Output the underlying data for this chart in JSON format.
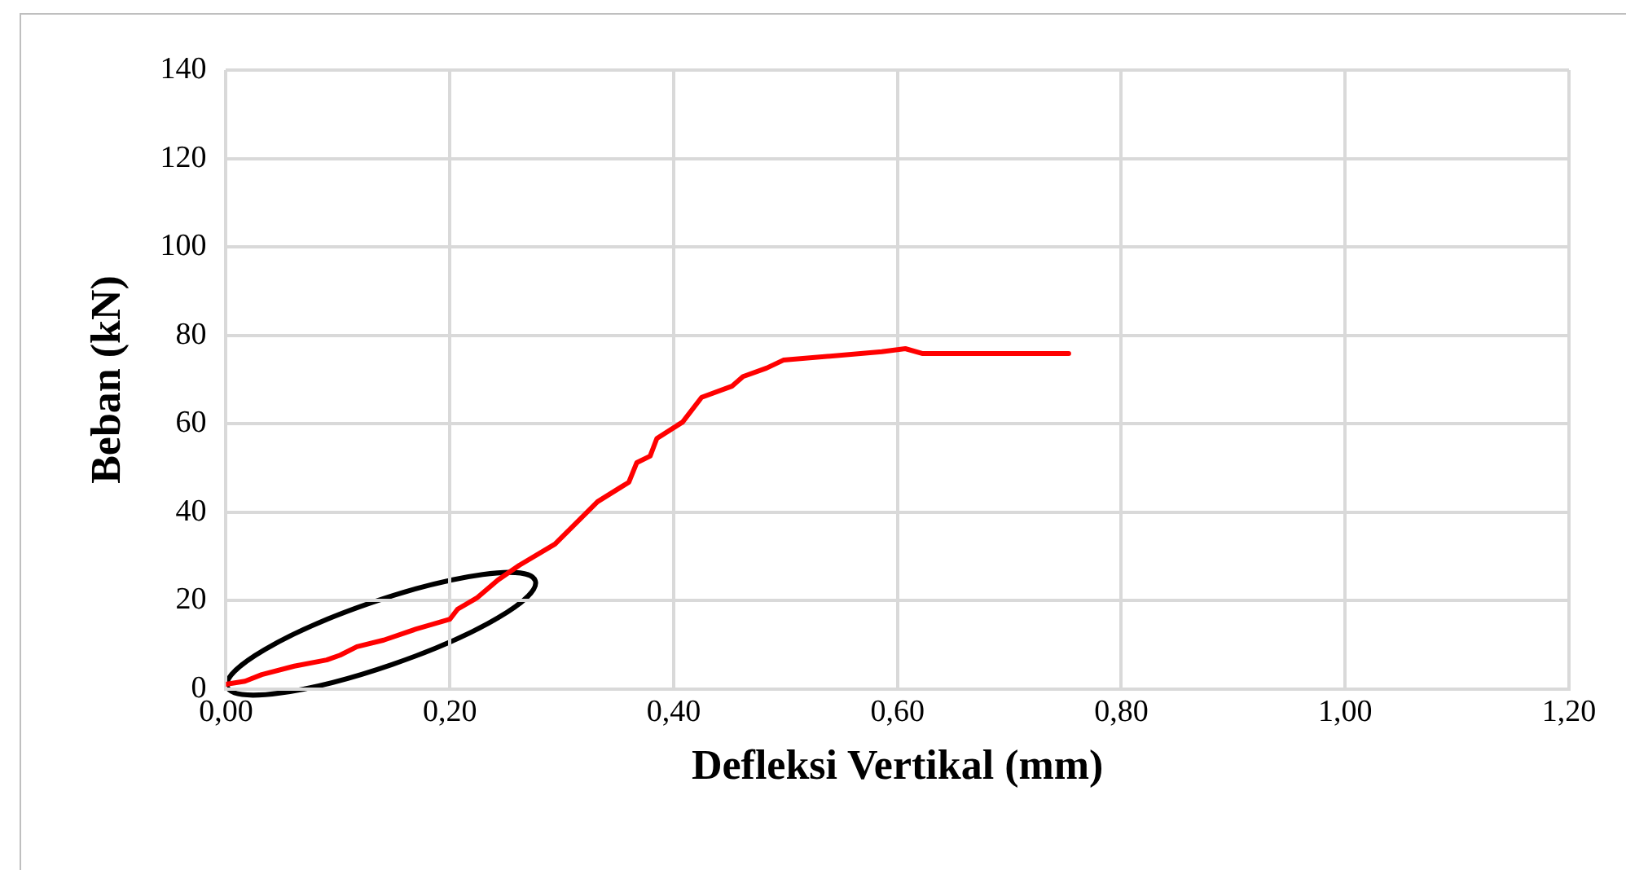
{
  "chart_data": {
    "type": "line",
    "xlabel": "Defleksi Vertikal (mm)",
    "ylabel": "Beban (kN)",
    "x": [
      0,
      0.017,
      0.032,
      0.061,
      0.09,
      0.102,
      0.117,
      0.141,
      0.17,
      0.2,
      0.207,
      0.224,
      0.243,
      0.262,
      0.294,
      0.313,
      0.332,
      0.36,
      0.367,
      0.379,
      0.385,
      0.408,
      0.425,
      0.452,
      0.462,
      0.483,
      0.498,
      0.586,
      0.607,
      0.622,
      0.753
    ],
    "series": [
      {
        "color": "#ff0000",
        "values": [
          1.1,
          1.8,
          3.3,
          5.2,
          6.6,
          7.7,
          9.6,
          11.1,
          13.6,
          15.8,
          18.1,
          20.6,
          24.7,
          28,
          32.8,
          37.6,
          42.4,
          46.8,
          51.2,
          52.7,
          56.7,
          60.4,
          66,
          68.5,
          70.7,
          72.6,
          74.4,
          76.3,
          77,
          75.9,
          75.9
        ]
      }
    ],
    "xlim": [
      0,
      1.2
    ],
    "xticks": [
      {
        "value": 0,
        "label": "0,00"
      },
      {
        "value": 0.2,
        "label": "0,20"
      },
      {
        "value": 0.4,
        "label": "0,40"
      },
      {
        "value": 0.6,
        "label": "0,60"
      },
      {
        "value": 0.8,
        "label": "0,80"
      },
      {
        "value": 1,
        "label": "1,00"
      },
      {
        "value": 1.2,
        "label": "1,20"
      }
    ],
    "ylim": [
      0,
      140
    ],
    "yticks": [
      0,
      20,
      40,
      60,
      80,
      100,
      120,
      140
    ],
    "grid": true,
    "legend": false,
    "marker": "none",
    "line_style": "solid"
  }
}
